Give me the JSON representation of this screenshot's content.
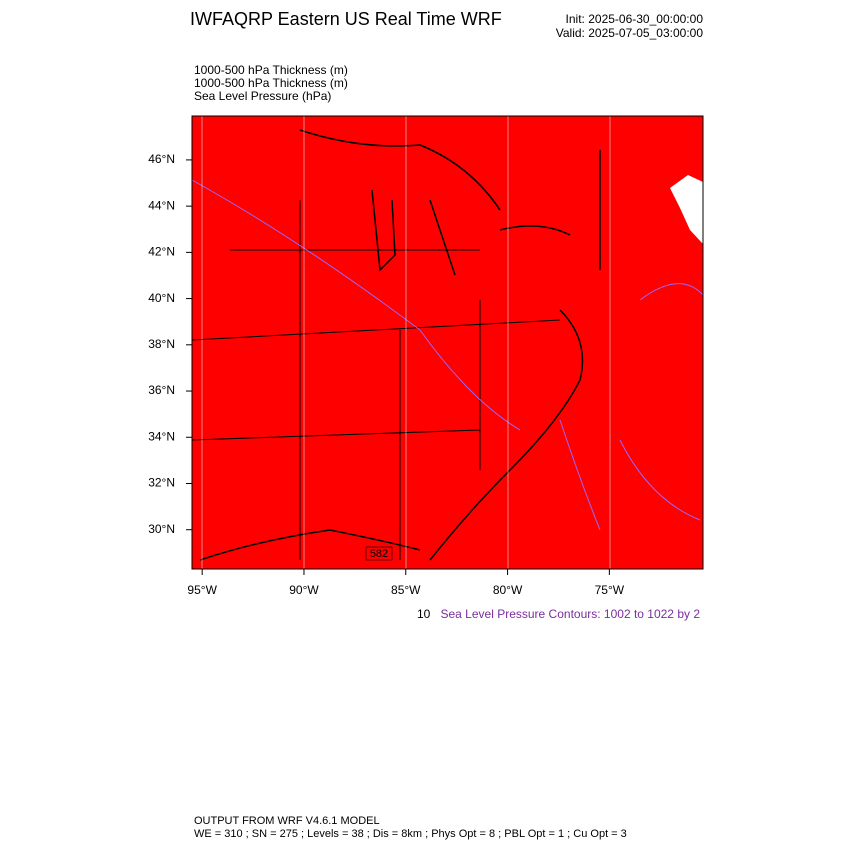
{
  "header": {
    "title": "IWFAQRP Eastern US Real Time WRF",
    "init": "Init: 2025-06-30_00:00:00",
    "valid": "Valid: 2025-07-05_03:00:00"
  },
  "fields": [
    "1000-500 hPa Thickness   (m)",
    "1000-500 hPa Thickness   (m)",
    "Sea Level Pressure   (hPa)"
  ],
  "map": {
    "xlim": [
      -95.5,
      -70.4
    ],
    "ylim": [
      28.3,
      47.9
    ],
    "yticks": [
      {
        "value": 30,
        "label": "30°N"
      },
      {
        "value": 32,
        "label": "32°N"
      },
      {
        "value": 34,
        "label": "34°N"
      },
      {
        "value": 36,
        "label": "36°N"
      },
      {
        "value": 38,
        "label": "38°N"
      },
      {
        "value": 40,
        "label": "40°N"
      },
      {
        "value": 42,
        "label": "42°N"
      },
      {
        "value": 44,
        "label": "44°N"
      },
      {
        "value": 46,
        "label": "46°N"
      }
    ],
    "xticks": [
      {
        "value": -95,
        "label": "95°W"
      },
      {
        "value": -90,
        "label": "90°W"
      },
      {
        "value": -85,
        "label": "85°W"
      },
      {
        "value": -80,
        "label": "80°W"
      },
      {
        "value": -75,
        "label": "75°W"
      }
    ],
    "contour_label": "582"
  },
  "notes": {
    "hidden": "10",
    "slp": "Sea Level Pressure Contours: 1002 to 1022 by 2"
  },
  "footer": {
    "line1": "OUTPUT FROM WRF V4.6.1 MODEL",
    "line2": "WE = 310 ; SN = 275 ; Levels = 38 ; Dis = 8km ; Phys Opt = 8 ; PBL Opt = 1 ; Cu Opt = 3"
  }
}
